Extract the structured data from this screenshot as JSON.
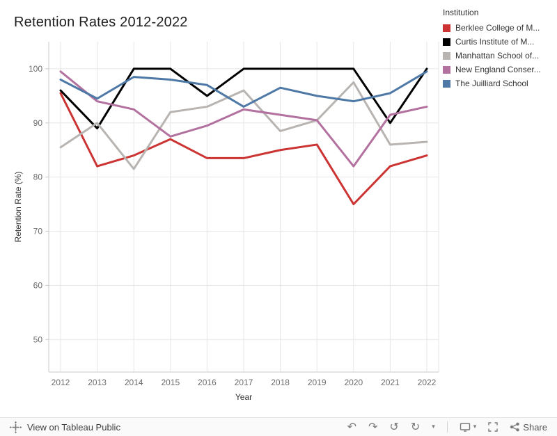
{
  "title": "Retention Rates 2012-2022",
  "legend": {
    "title": "Institution",
    "items": [
      {
        "label": "Berklee College of M...",
        "color": "#cb3432"
      },
      {
        "label": "Curtis Institute of M...",
        "color": "#000000"
      },
      {
        "label": "Manhattan School of...",
        "color": "#b8b4b1"
      },
      {
        "label": "New England Conser...",
        "color": "#b3719f"
      },
      {
        "label": "The Juilliard School",
        "color": "#4e79a7"
      }
    ]
  },
  "chart_data": {
    "type": "line",
    "title": "Retention Rates 2012-2022",
    "x": [
      2012,
      2013,
      2014,
      2015,
      2016,
      2017,
      2018,
      2019,
      2020,
      2021,
      2022
    ],
    "series": [
      {
        "name": "Berklee College of M...",
        "color": "#cb3432",
        "values": [
          95.5,
          82,
          84,
          87,
          83.5,
          83.5,
          85,
          86,
          75,
          82,
          84
        ]
      },
      {
        "name": "Curtis Institute of M...",
        "color": "#000000",
        "values": [
          96,
          89,
          100,
          100,
          95,
          100,
          100,
          100,
          100,
          90,
          100
        ]
      },
      {
        "name": "Manhattan School of...",
        "color": "#b8b4b1",
        "values": [
          85.5,
          90,
          81.5,
          92,
          93,
          96,
          88.5,
          90.5,
          97.5,
          86,
          86.5
        ]
      },
      {
        "name": "New England Conser...",
        "color": "#b3719f",
        "values": [
          99.5,
          94,
          92.5,
          87.5,
          89.5,
          92.5,
          91.5,
          90.5,
          82,
          91.5,
          93
        ]
      },
      {
        "name": "The Juilliard School",
        "color": "#4e79a7",
        "values": [
          98,
          94.5,
          98.5,
          98,
          97,
          93,
          96.5,
          95,
          94,
          95.5,
          99.5
        ]
      }
    ],
    "xlabel": "Year",
    "ylabel": "Retention Rate (%)",
    "yticks": [
      50,
      60,
      70,
      80,
      90,
      100
    ],
    "ylim": [
      44,
      105
    ],
    "legend_position": "top-right",
    "grid": true
  },
  "toolbar": {
    "view_label": "View on Tableau Public",
    "share_label": "Share"
  }
}
